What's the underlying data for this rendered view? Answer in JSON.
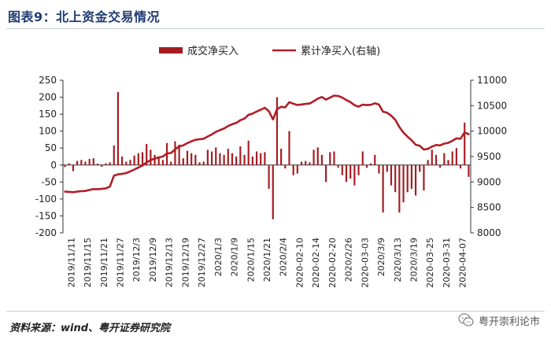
{
  "header": {
    "title": "图表9：北上资金交易情况"
  },
  "footer": {
    "source": "资料来源：wind、粤开证券研究院",
    "watermark": "粤开崇利论市"
  },
  "chart_data": {
    "type": "bar+line",
    "title": "图表9：北上资金交易情况",
    "legend_position": "top",
    "grid": false,
    "colors": {
      "bar": "#a51c22",
      "line": "#b01e27"
    },
    "x_tick_labels": [
      "2019/11/11",
      "2019/11/15",
      "2019/11/21",
      "2019/11/27",
      "2019/12/3",
      "2019/12/9",
      "2019/12/13",
      "2019/12/19",
      "2019/12/27",
      "2020/1/3",
      "2020/1/9",
      "2020/1/15",
      "2020/1/21",
      "2020/2/4",
      "2020-02-10",
      "2020-02-14",
      "2020-02-20",
      "2020/2/26",
      "2020-03-03",
      "2020/3/9",
      "2020/3/13",
      "2020/3/19",
      "2020-03-25",
      "2020-03-31",
      "2020-04-07"
    ],
    "y_left": {
      "min": -200,
      "max": 250,
      "ticks": [
        -200,
        -150,
        -100,
        -50,
        0,
        50,
        100,
        150,
        200,
        250
      ],
      "tick_labels": [
        "-200",
        "-150",
        "-100",
        "-50",
        "0",
        "50",
        "100",
        "150",
        "200",
        "250"
      ]
    },
    "y_right": {
      "min": 8000,
      "max": 11000,
      "ticks": [
        8000,
        8500,
        9000,
        9500,
        10000,
        10500,
        11000
      ],
      "tick_labels": [
        "8000",
        "8500",
        "9000",
        "9500",
        "10000",
        "10500",
        "11000"
      ]
    },
    "series": [
      {
        "name": "成交净买入",
        "type": "bar",
        "axis": "left",
        "values": [
          -6,
          5,
          -18,
          12,
          15,
          10,
          18,
          20,
          4,
          -5,
          5,
          8,
          58,
          215,
          25,
          10,
          15,
          28,
          35,
          38,
          62,
          45,
          30,
          25,
          15,
          65,
          10,
          70,
          60,
          20,
          42,
          35,
          30,
          8,
          10,
          45,
          40,
          52,
          35,
          30,
          48,
          35,
          25,
          55,
          30,
          72,
          25,
          40,
          35,
          38,
          -70,
          -160,
          200,
          48,
          -10,
          100,
          -30,
          -25,
          10,
          12,
          8,
          45,
          52,
          30,
          -50,
          38,
          40,
          -8,
          -30,
          -50,
          -40,
          -60,
          -30,
          40,
          -8,
          5,
          30,
          -25,
          -140,
          -20,
          -60,
          -80,
          -140,
          -110,
          -80,
          -70,
          -90,
          -20,
          -75,
          15,
          45,
          30,
          -8,
          35,
          15,
          40,
          50,
          -10,
          125,
          -35
        ]
      },
      {
        "name": "累计净买入(右轴)",
        "type": "line",
        "axis": "right",
        "values": [
          8810,
          8805,
          8800,
          8810,
          8820,
          8825,
          8845,
          8860,
          8860,
          8865,
          8875,
          8910,
          9125,
          9150,
          9160,
          9175,
          9210,
          9245,
          9285,
          9325,
          9385,
          9430,
          9460,
          9485,
          9500,
          9560,
          9570,
          9640,
          9700,
          9720,
          9765,
          9800,
          9830,
          9840,
          9850,
          9895,
          9935,
          9985,
          10020,
          10050,
          10100,
          10135,
          10160,
          10215,
          10245,
          10320,
          10345,
          10385,
          10420,
          10458,
          10390,
          10230,
          10430,
          10478,
          10468,
          10568,
          10538,
          10513,
          10523,
          10535,
          10543,
          10588,
          10640,
          10670,
          10620,
          10658,
          10698,
          10690,
          10660,
          10610,
          10570,
          10510,
          10480,
          10520,
          10512,
          10517,
          10547,
          10522,
          10382,
          10362,
          10302,
          10222,
          10082,
          9972,
          9892,
          9822,
          9732,
          9712,
          9637,
          9652,
          9697,
          9727,
          9719,
          9754,
          9769,
          9809,
          9859,
          9849,
          9974,
          9939
        ]
      }
    ]
  }
}
